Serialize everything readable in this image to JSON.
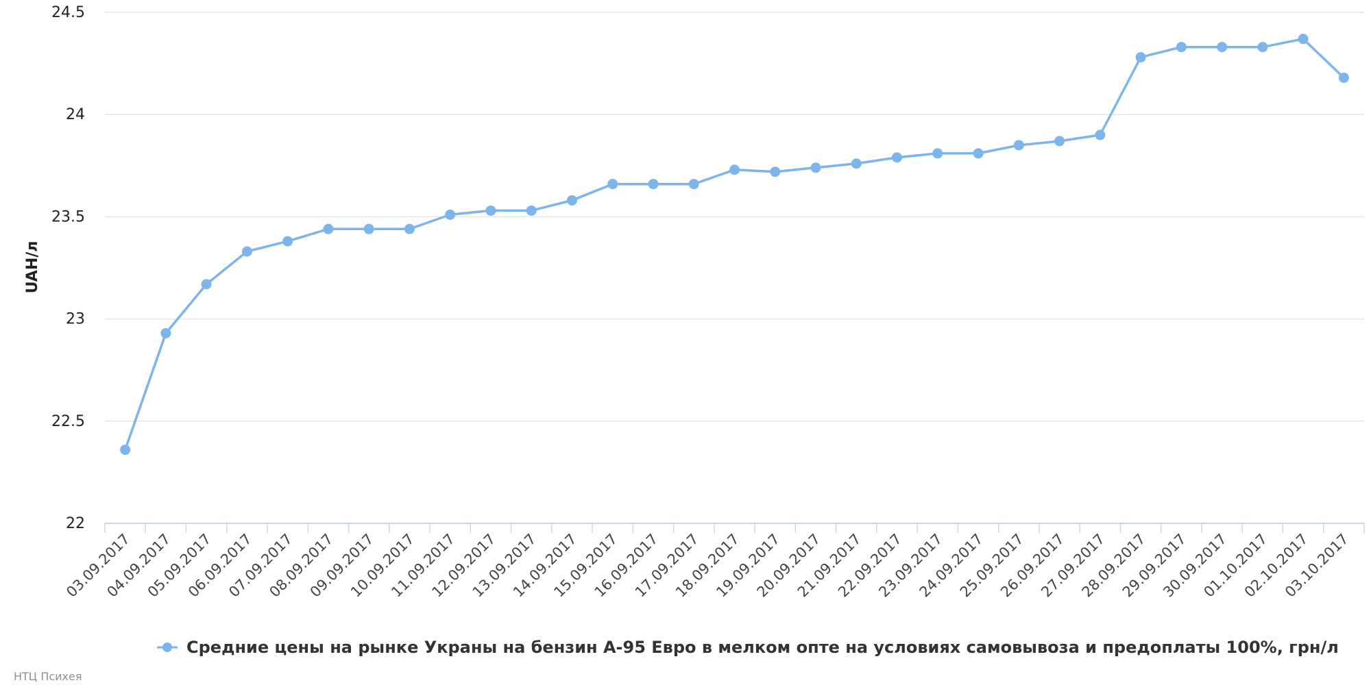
{
  "chart_data": {
    "type": "line",
    "title": "",
    "xlabel": "",
    "ylabel": "UAH/л",
    "ylim": [
      22,
      24.5
    ],
    "yticks": [
      "22",
      "22.5",
      "23",
      "23.5",
      "24",
      "24.5"
    ],
    "grid": true,
    "legend_position": "bottom-center",
    "categories": [
      "03.09.2017",
      "04.09.2017",
      "05.09.2017",
      "06.09.2017",
      "07.09.2017",
      "08.09.2017",
      "09.09.2017",
      "10.09.2017",
      "11.09.2017",
      "12.09.2017",
      "13.09.2017",
      "14.09.2017",
      "15.09.2017",
      "16.09.2017",
      "17.09.2017",
      "18.09.2017",
      "19.09.2017",
      "20.09.2017",
      "21.09.2017",
      "22.09.2017",
      "23.09.2017",
      "24.09.2017",
      "25.09.2017",
      "26.09.2017",
      "27.09.2017",
      "28.09.2017",
      "29.09.2017",
      "30.09.2017",
      "01.10.2017",
      "02.10.2017",
      "03.10.2017"
    ],
    "series": [
      {
        "name": "Средние цены на рынке Украны на бензин А-95 Евро в мелком опте на условиях самовывоза и предоплаты 100%, грн/л",
        "color": "#7cb5ec",
        "values": [
          22.36,
          22.93,
          23.17,
          23.33,
          23.38,
          23.44,
          23.44,
          23.44,
          23.51,
          23.53,
          23.53,
          23.58,
          23.66,
          23.66,
          23.66,
          23.73,
          23.72,
          23.74,
          23.76,
          23.79,
          23.81,
          23.81,
          23.85,
          23.87,
          23.9,
          24.28,
          24.33,
          24.33,
          24.33,
          24.37,
          24.18
        ]
      }
    ]
  },
  "credit": "НТЦ Психея"
}
